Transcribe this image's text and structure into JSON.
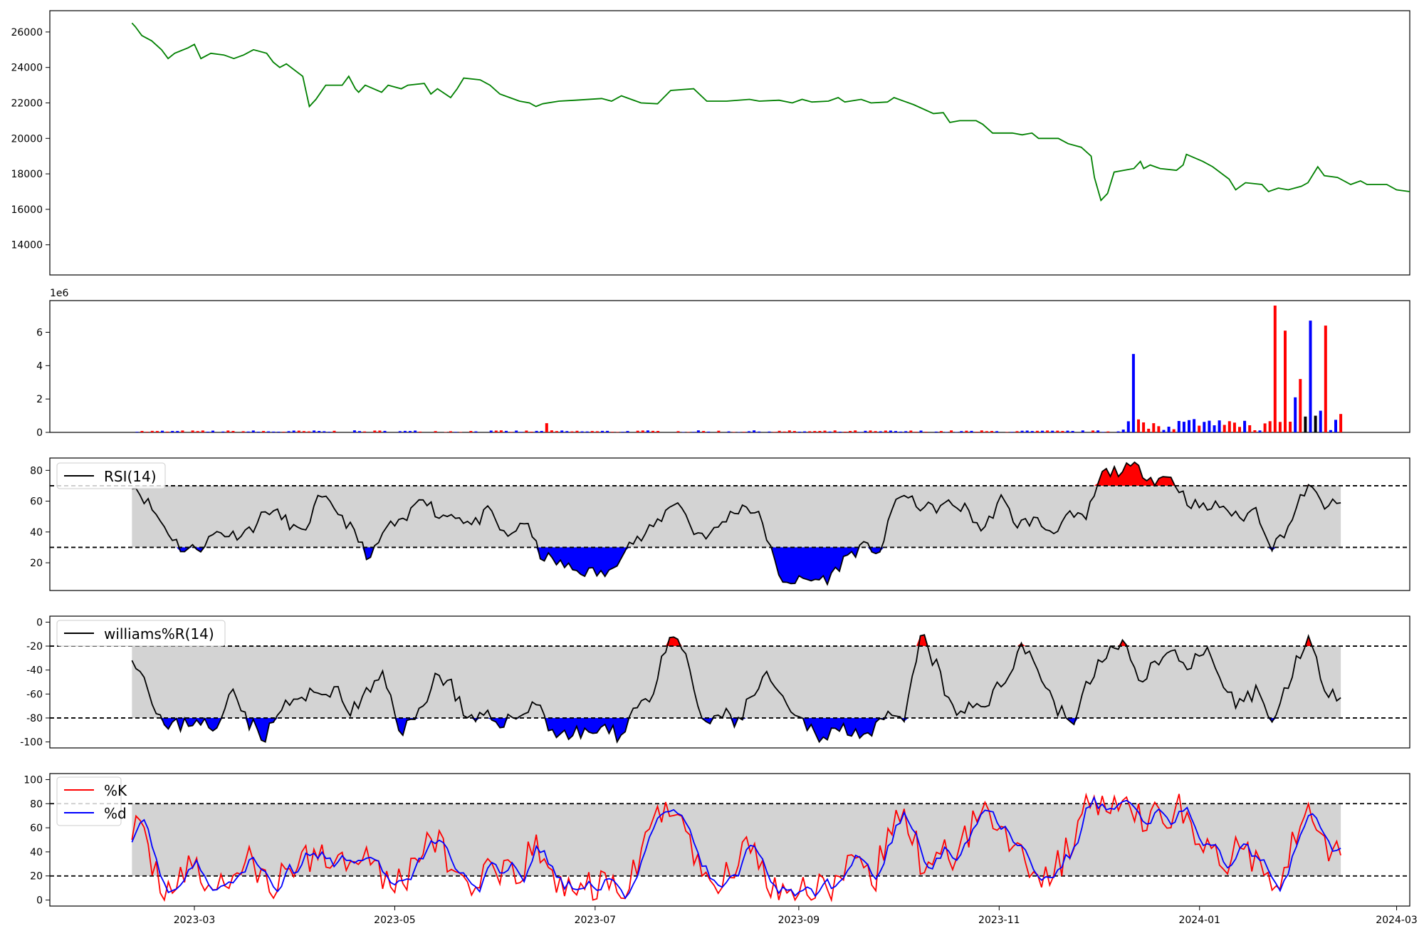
{
  "chart_data": [
    {
      "id": "price",
      "type": "line",
      "color": "#008000",
      "ylim": [
        12300,
        27200
      ],
      "yticks": [
        14000,
        16000,
        18000,
        20000,
        22000,
        24000,
        26000
      ],
      "x_range": [
        "2023-01-16",
        "2024-03-05"
      ],
      "series": [
        {
          "points": [
            [
              "2023-02-10",
              26500
            ],
            [
              "2023-02-11",
              26300
            ],
            [
              "2023-02-13",
              25800
            ],
            [
              "2023-02-16",
              25500
            ],
            [
              "2023-02-19",
              25000
            ],
            [
              "2023-02-21",
              24500
            ],
            [
              "2023-02-23",
              24800
            ],
            [
              "2023-02-27",
              25100
            ],
            [
              "2023-03-01",
              25300
            ],
            [
              "2023-03-03",
              24500
            ],
            [
              "2023-03-06",
              24800
            ],
            [
              "2023-03-10",
              24700
            ],
            [
              "2023-03-13",
              24500
            ],
            [
              "2023-03-16",
              24700
            ],
            [
              "2023-03-19",
              25000
            ],
            [
              "2023-03-23",
              24800
            ],
            [
              "2023-03-25",
              24300
            ],
            [
              "2023-03-27",
              24000
            ],
            [
              "2023-03-29",
              24200
            ],
            [
              "2023-04-03",
              23500
            ],
            [
              "2023-04-05",
              21800
            ],
            [
              "2023-04-07",
              22200
            ],
            [
              "2023-04-10",
              23000
            ],
            [
              "2023-04-15",
              23000
            ],
            [
              "2023-04-17",
              23500
            ],
            [
              "2023-04-19",
              22800
            ],
            [
              "2023-04-20",
              22600
            ],
            [
              "2023-04-22",
              23000
            ],
            [
              "2023-04-27",
              22600
            ],
            [
              "2023-04-29",
              23000
            ],
            [
              "2023-05-03",
              22800
            ],
            [
              "2023-05-05",
              23000
            ],
            [
              "2023-05-10",
              23100
            ],
            [
              "2023-05-12",
              22500
            ],
            [
              "2023-05-14",
              22800
            ],
            [
              "2023-05-18",
              22300
            ],
            [
              "2023-05-20",
              22800
            ],
            [
              "2023-05-22",
              23400
            ],
            [
              "2023-05-27",
              23300
            ],
            [
              "2023-05-30",
              23000
            ],
            [
              "2023-06-02",
              22500
            ],
            [
              "2023-06-05",
              22300
            ],
            [
              "2023-06-08",
              22100
            ],
            [
              "2023-06-11",
              22000
            ],
            [
              "2023-06-13",
              21800
            ],
            [
              "2023-06-15",
              21950
            ],
            [
              "2023-06-20",
              22100
            ],
            [
              "2023-06-25",
              22150
            ],
            [
              "2023-07-03",
              22250
            ],
            [
              "2023-07-06",
              22100
            ],
            [
              "2023-07-09",
              22400
            ],
            [
              "2023-07-15",
              22000
            ],
            [
              "2023-07-20",
              21950
            ],
            [
              "2023-07-24",
              22700
            ],
            [
              "2023-07-31",
              22800
            ],
            [
              "2023-08-04",
              22100
            ],
            [
              "2023-08-10",
              22100
            ],
            [
              "2023-08-17",
              22200
            ],
            [
              "2023-08-20",
              22100
            ],
            [
              "2023-08-26",
              22150
            ],
            [
              "2023-08-30",
              22000
            ],
            [
              "2023-09-02",
              22200
            ],
            [
              "2023-09-05",
              22050
            ],
            [
              "2023-09-10",
              22100
            ],
            [
              "2023-09-13",
              22300
            ],
            [
              "2023-09-15",
              22050
            ],
            [
              "2023-09-20",
              22200
            ],
            [
              "2023-09-23",
              22000
            ],
            [
              "2023-09-28",
              22050
            ],
            [
              "2023-09-30",
              22300
            ],
            [
              "2023-10-06",
              21900
            ],
            [
              "2023-10-12",
              21400
            ],
            [
              "2023-10-15",
              21450
            ],
            [
              "2023-10-17",
              20900
            ],
            [
              "2023-10-20",
              21000
            ],
            [
              "2023-10-25",
              21000
            ],
            [
              "2023-10-27",
              20800
            ],
            [
              "2023-10-30",
              20300
            ],
            [
              "2023-11-05",
              20300
            ],
            [
              "2023-11-08",
              20200
            ],
            [
              "2023-11-11",
              20300
            ],
            [
              "2023-11-13",
              20000
            ],
            [
              "2023-11-19",
              20000
            ],
            [
              "2023-11-22",
              19700
            ],
            [
              "2023-11-26",
              19500
            ],
            [
              "2023-11-29",
              19000
            ],
            [
              "2023-11-30",
              17800
            ],
            [
              "2023-12-02",
              16500
            ],
            [
              "2023-12-04",
              16900
            ],
            [
              "2023-12-06",
              18100
            ],
            [
              "2023-12-12",
              18300
            ],
            [
              "2023-12-14",
              18700
            ],
            [
              "2023-12-15",
              18300
            ],
            [
              "2023-12-17",
              18500
            ],
            [
              "2023-12-20",
              18300
            ],
            [
              "2023-12-25",
              18200
            ],
            [
              "2023-12-27",
              18500
            ],
            [
              "2023-12-28",
              19100
            ],
            [
              "2024-01-02",
              18700
            ],
            [
              "2024-01-05",
              18400
            ],
            [
              "2024-01-10",
              17700
            ],
            [
              "2024-01-12",
              17100
            ],
            [
              "2024-01-15",
              17500
            ],
            [
              "2024-01-20",
              17400
            ],
            [
              "2024-01-22",
              17000
            ],
            [
              "2024-01-25",
              17200
            ],
            [
              "2024-01-28",
              17100
            ],
            [
              "2024-02-01",
              17300
            ],
            [
              "2024-02-03",
              17500
            ],
            [
              "2024-02-06",
              18400
            ],
            [
              "2024-02-08",
              17900
            ],
            [
              "2024-02-12",
              17800
            ],
            [
              "2024-02-14",
              17600
            ],
            [
              "2024-02-16",
              17400
            ],
            [
              "2024-02-19",
              17600
            ],
            [
              "2024-02-21",
              17400
            ],
            [
              "2024-02-27",
              17400
            ],
            [
              "2024-03-01",
              17100
            ],
            [
              "2024-03-05",
              17000
            ]
          ]
        }
      ]
    },
    {
      "id": "volume",
      "type": "bar",
      "offset_label": "1e6",
      "ylim": [
        0,
        7.9
      ],
      "yticks": [
        0,
        2,
        4,
        6
      ],
      "colors": {
        "red": "#ff0000",
        "blue": "#0000ff",
        "black": "#000000"
      }
    },
    {
      "id": "rsi",
      "type": "line",
      "legend": [
        "RSI(14)"
      ],
      "ylim": [
        2,
        88
      ],
      "yticks": [
        20,
        40,
        60,
        80
      ],
      "thresholds": [
        30,
        70
      ],
      "colors": {
        "line": "#000000",
        "band": "#d3d3d3",
        "above": "#ff0000",
        "below": "#0000ff"
      }
    },
    {
      "id": "williams",
      "type": "line",
      "legend": [
        "williams%R(14)"
      ],
      "ylim": [
        -105,
        5
      ],
      "yticks": [
        -100,
        -80,
        -60,
        -40,
        -20,
        0
      ],
      "thresholds": [
        -80,
        -20
      ],
      "colors": {
        "line": "#000000",
        "band": "#d3d3d3",
        "above": "#ff0000",
        "below": "#0000ff"
      }
    },
    {
      "id": "stoch",
      "type": "line",
      "legend": [
        "%K",
        "%d"
      ],
      "ylim": [
        -5,
        105
      ],
      "yticks": [
        0,
        20,
        40,
        60,
        80,
        100
      ],
      "thresholds": [
        20,
        80
      ],
      "colors": {
        "k": "#ff0000",
        "d": "#0000ff",
        "band": "#d3d3d3"
      }
    }
  ],
  "x_axis": {
    "tick_labels": [
      "2023-03",
      "2023-05",
      "2023-07",
      "2023-09",
      "2023-11",
      "2024-01",
      "2024-03"
    ],
    "tick_dates": [
      "2023-03-01",
      "2023-05-01",
      "2023-07-01",
      "2023-09-01",
      "2023-11-01",
      "2024-01-01",
      "2024-03-01"
    ]
  }
}
